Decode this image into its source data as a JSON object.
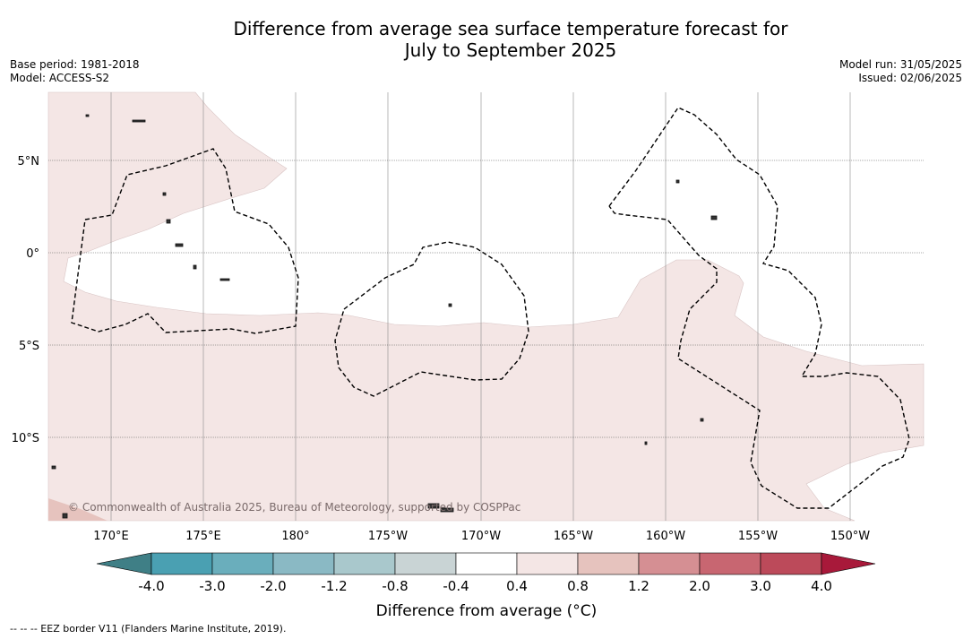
{
  "title_line1": "Difference from average sea surface temperature forecast for",
  "title_line2": "July to September 2025",
  "base_period": "Base period: 1981-2018",
  "model": "Model: ACCESS-S2",
  "model_run": "Model run: 31/05/2025",
  "issued": "Issued: 02/06/2025",
  "lat_labels": [
    "5°N",
    "0°",
    "5°S",
    "10°S"
  ],
  "lon_labels": [
    "170°E",
    "175°E",
    "180°",
    "175°W",
    "170°W",
    "165°W",
    "160°W",
    "155°W",
    "150°W"
  ],
  "copyright": "© Commonwealth of Australia 2025, Bureau of Meteorology, supported by COSPPac",
  "colorbar": {
    "ticks": [
      "-4.0",
      "-3.0",
      "-2.0",
      "-1.2",
      "-0.8",
      "-0.4",
      "0.4",
      "0.8",
      "1.2",
      "2.0",
      "3.0",
      "4.0"
    ],
    "colors": [
      "#4aa0b2",
      "#6aaebc",
      "#8ab9c4",
      "#a9c8cc",
      "#c9d4d5",
      "#ffffff",
      "#f4e6e5",
      "#e6c3be",
      "#d58f93",
      "#c86671",
      "#bc4a5a"
    ],
    "under_color": "#3f7f86",
    "over_color": "#a8193a",
    "label": "Difference from average (°C)"
  },
  "legend_note": "--  --  -- EEZ border V11 (Flanders Marine Institute, 2019).",
  "colors": {
    "warm_fill": "#f4e6e5",
    "warmer_fill": "#e6c3be",
    "gridline": "#888888"
  }
}
